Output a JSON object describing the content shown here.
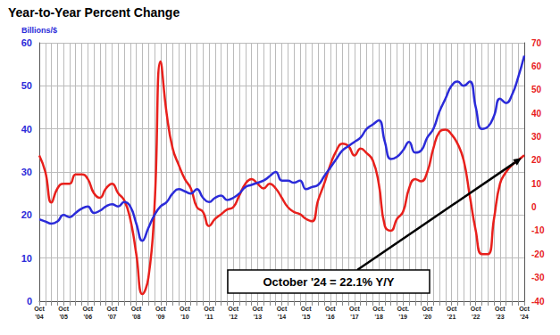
{
  "chart_data": {
    "type": "line",
    "title": "Year-to-Year Percent Change",
    "y_label": "Billions/$",
    "annotation": "October '24 = 22.1% Y/Y",
    "categories": [
      "Oct\n'04",
      null,
      null,
      null,
      "Oct\n'05",
      null,
      null,
      null,
      "Oct\n'06",
      null,
      null,
      null,
      "Oct\n'07",
      null,
      null,
      null,
      "Oct\n'08",
      null,
      null,
      null,
      "Oct\n'09",
      null,
      null,
      null,
      "Oct\n'10",
      null,
      null,
      null,
      "Oct\n'11",
      null,
      null,
      null,
      "Oct\n'12",
      null,
      null,
      null,
      "Oct\n'13",
      null,
      null,
      null,
      "Oct\n'14",
      null,
      null,
      null,
      "Oct\n'15",
      null,
      null,
      null,
      "Oct\n'16",
      null,
      null,
      null,
      "Oct\n'17",
      null,
      null,
      null,
      "Oct.\n'18",
      null,
      null,
      null,
      "Oct.\n'19",
      null,
      null,
      null,
      "Oct\n'20",
      null,
      null,
      null,
      "Oct\n'21",
      null,
      null,
      null,
      "Oct\n'22",
      null,
      null,
      null,
      "Oct\n'23",
      null,
      null,
      null,
      "Oct\n'24"
    ],
    "series": [
      {
        "color": "#2b2bd9",
        "values": [
          19,
          18.5,
          18,
          18.5,
          20,
          19.5,
          20.5,
          21.5,
          22,
          20.5,
          21,
          22,
          22.5,
          22,
          23,
          22,
          18,
          14,
          17,
          20,
          22,
          23,
          25,
          26,
          25.5,
          25,
          26,
          24,
          23,
          24,
          24.5,
          23.5,
          24,
          25,
          26.5,
          27,
          27.5,
          28,
          29,
          30,
          28,
          28,
          27.5,
          28,
          26,
          26.5,
          27,
          29,
          31,
          33,
          35,
          36,
          37,
          38,
          40,
          41,
          42,
          37,
          33,
          33.5,
          35,
          37,
          34.5,
          35,
          38,
          40,
          44,
          47,
          50,
          51,
          50,
          51,
          45,
          40,
          40.5,
          43,
          47,
          46,
          48,
          52,
          57
        ]
      },
      {
        "color": "#e8201c",
        "axis": "y2",
        "values": [
          22,
          15,
          2,
          8,
          10,
          10,
          14,
          14,
          12,
          6,
          4,
          8,
          10,
          6,
          3,
          -5,
          -20,
          -37,
          -30,
          0,
          62,
          40,
          25,
          18,
          12,
          8,
          0,
          -2,
          -8,
          -5,
          -3,
          -1,
          0,
          5,
          10,
          12,
          10,
          8,
          10,
          8,
          4,
          0,
          -2,
          -3,
          -5,
          -6,
          3,
          10,
          18,
          24,
          27,
          26,
          22,
          25,
          23,
          20,
          10,
          -8,
          -10,
          -5,
          -2,
          8,
          12,
          11,
          15,
          25,
          32,
          33,
          31,
          27,
          20,
          5,
          -10,
          -20,
          -20,
          -5,
          10,
          15,
          18,
          20,
          22.1
        ]
      }
    ],
    "ylim": [
      0,
      60
    ],
    "yticks": [
      0,
      10,
      20,
      30,
      40,
      50,
      60
    ],
    "y2lim": [
      -40,
      70
    ],
    "y2ticks": [
      -40,
      -30,
      -20,
      -10,
      0,
      10,
      20,
      30,
      40,
      50,
      60,
      70
    ],
    "grid": true
  }
}
